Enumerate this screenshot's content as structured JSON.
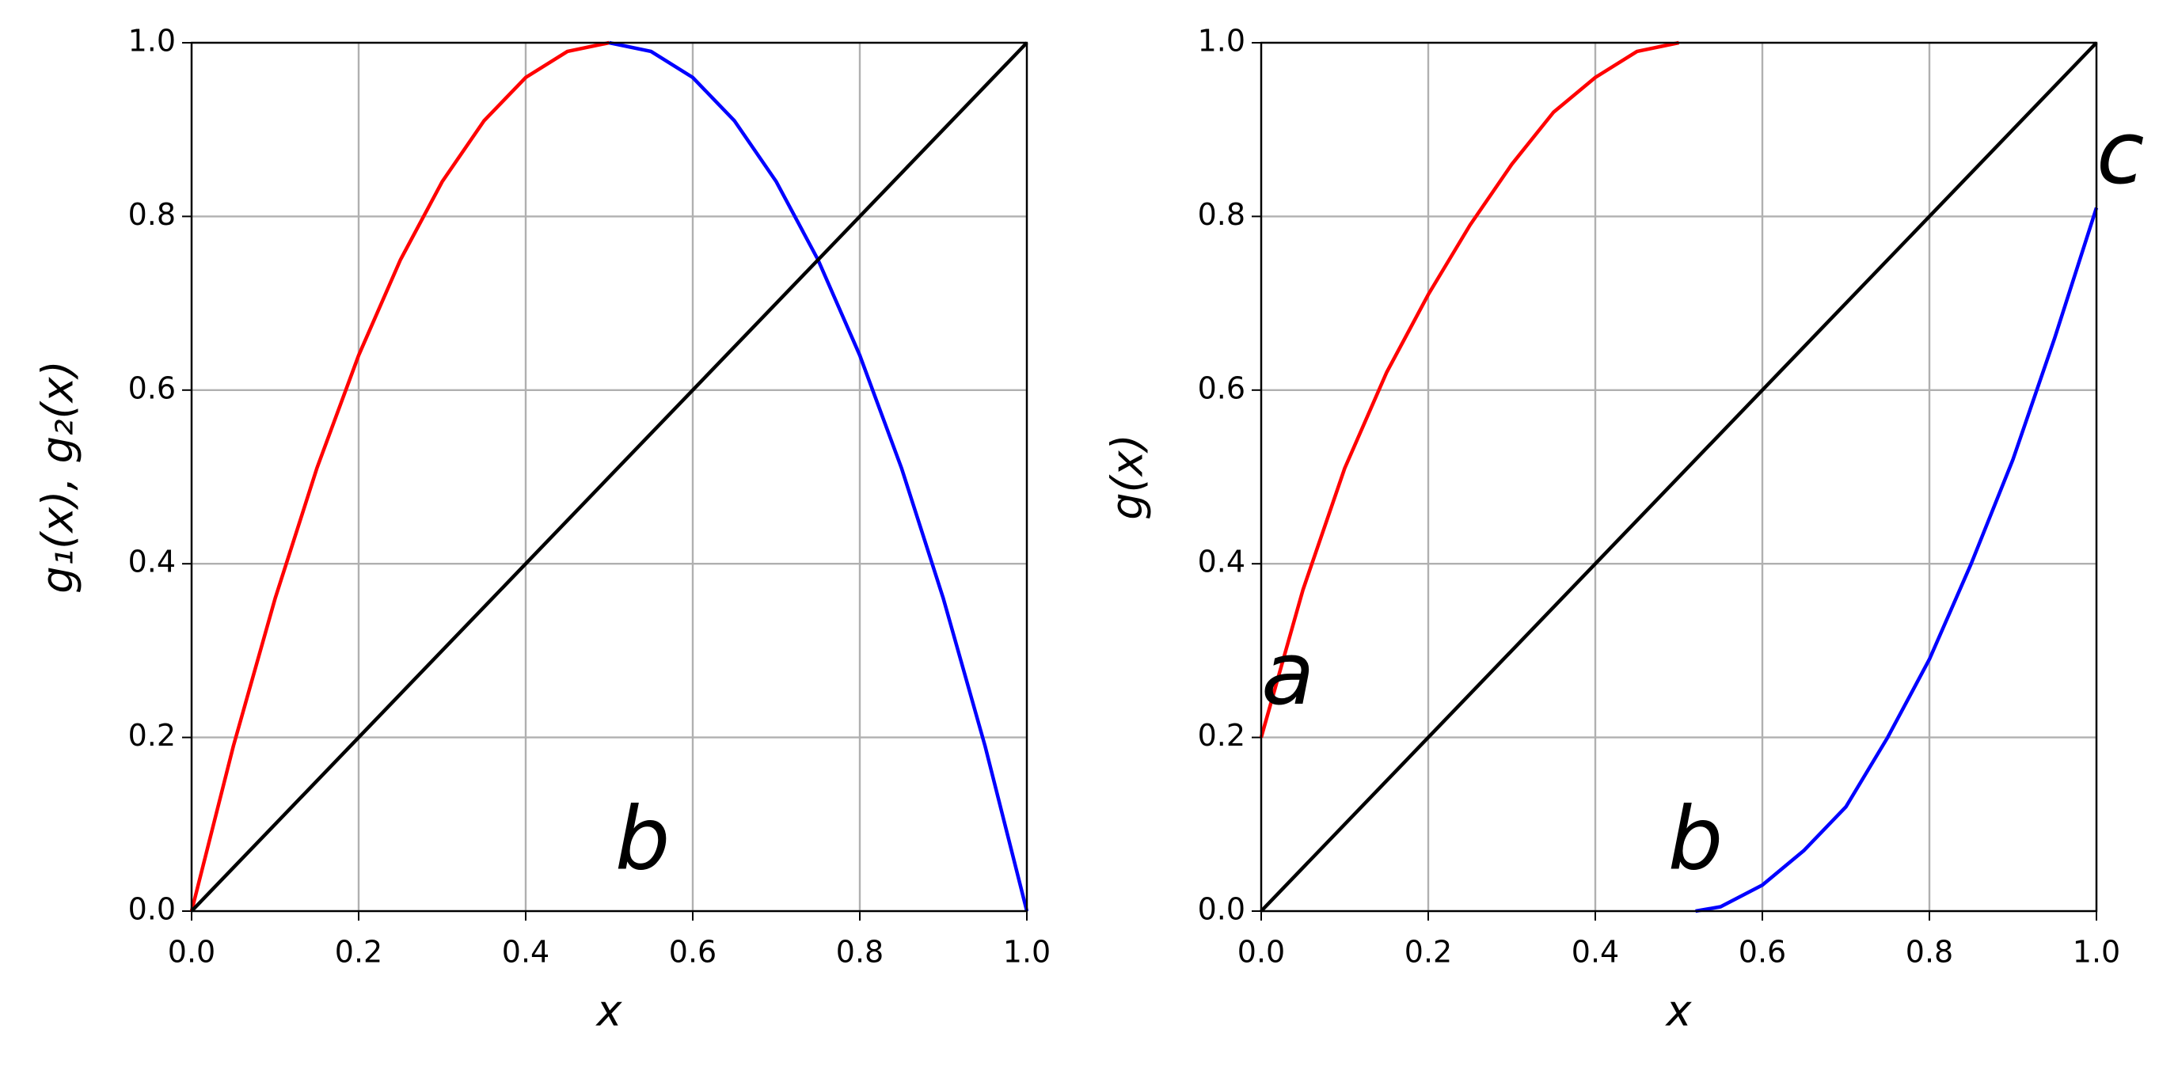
{
  "chart_data": [
    {
      "type": "line",
      "xlabel": "x",
      "ylabel": "g₁(x), g₂(x)",
      "xlim": [
        0,
        1
      ],
      "ylim": [
        0,
        1
      ],
      "grid": true,
      "xticks": [
        {
          "value": 0,
          "label": "0.0"
        },
        0.2,
        0.4,
        0.6,
        0.8,
        {
          "value": 1,
          "label": "1.0"
        }
      ],
      "yticks": [
        {
          "value": 0,
          "label": "0.0"
        },
        0.2,
        0.4,
        0.6,
        0.8,
        {
          "value": 1,
          "label": "1.0"
        }
      ],
      "annotations": [
        "b"
      ],
      "series": [
        {
          "color": "#ff0000",
          "x": [
            0,
            0.05,
            0.1,
            0.15,
            0.2,
            0.25,
            0.3,
            0.35,
            0.4,
            0.45,
            0.5
          ],
          "values": [
            0,
            0.19,
            0.36,
            0.51,
            0.64,
            0.75,
            0.84,
            0.91,
            0.96,
            0.99,
            1
          ]
        },
        {
          "color": "#0000ff",
          "x": [
            0.5,
            0.55,
            0.6,
            0.65,
            0.7,
            0.75,
            0.8,
            0.85,
            0.9,
            0.95,
            1
          ],
          "values": [
            1,
            0.99,
            0.96,
            0.91,
            0.84,
            0.75,
            0.64,
            0.51,
            0.36,
            0.19,
            0
          ]
        },
        {
          "color": "#000000",
          "x": [
            0,
            1
          ],
          "values": [
            0,
            1
          ]
        }
      ]
    },
    {
      "type": "line",
      "xlabel": "x",
      "ylabel": "g(x)",
      "xlim": [
        0,
        1
      ],
      "ylim": [
        0,
        1
      ],
      "grid": true,
      "xticks": [
        {
          "value": 0,
          "label": "0.0"
        },
        0.2,
        0.4,
        0.6,
        0.8,
        {
          "value": 1,
          "label": "1.0"
        }
      ],
      "yticks": [
        {
          "value": 0,
          "label": "0.0"
        },
        0.2,
        0.4,
        0.6,
        0.8,
        {
          "value": 1,
          "label": "1.0"
        }
      ],
      "annotations": [
        "a",
        "b",
        "c"
      ],
      "series": [
        {
          "color": "#ff0000",
          "x": [
            0,
            0.05,
            0.1,
            0.15,
            0.2,
            0.25,
            0.3,
            0.35,
            0.4,
            0.45,
            0.5
          ],
          "values": [
            0.2,
            0.37,
            0.51,
            0.62,
            0.71,
            0.79,
            0.86,
            0.92,
            0.96,
            0.99,
            1
          ]
        },
        {
          "color": "#0000ff",
          "x": [
            0.52,
            0.55,
            0.6,
            0.65,
            0.7,
            0.75,
            0.8,
            0.85,
            0.9,
            0.95,
            1
          ],
          "values": [
            0,
            0.005,
            0.03,
            0.07,
            0.12,
            0.2,
            0.29,
            0.4,
            0.52,
            0.66,
            0.81
          ]
        },
        {
          "color": "#000000",
          "x": [
            0,
            1
          ],
          "values": [
            0,
            1
          ]
        }
      ]
    }
  ]
}
